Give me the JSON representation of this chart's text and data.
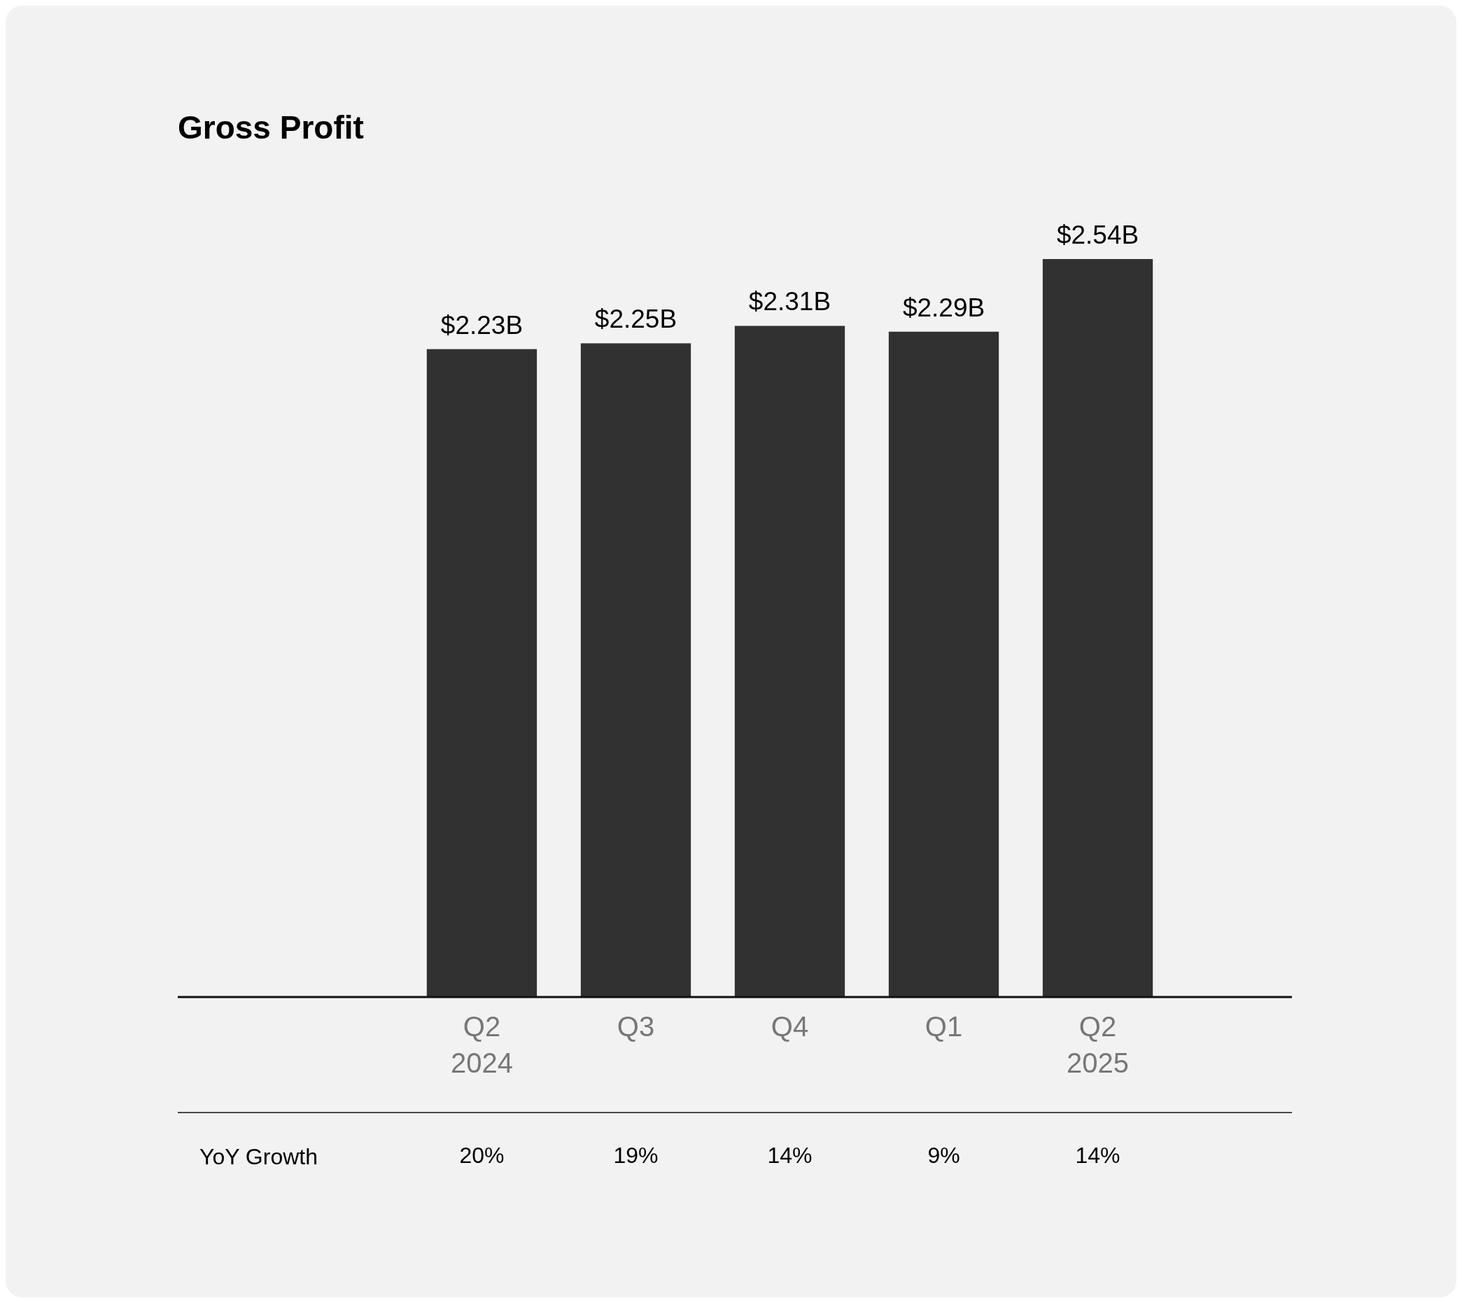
{
  "chart_data": {
    "type": "bar",
    "title": "Gross Profit",
    "categories": [
      "Q2\n2024",
      "Q3",
      "Q4",
      "Q1",
      "Q2\n2025"
    ],
    "values": [
      2.23,
      2.25,
      2.31,
      2.29,
      2.54
    ],
    "value_labels": [
      "$2.23B",
      "$2.25B",
      "$2.31B",
      "$2.29B",
      "$2.54B"
    ],
    "color": "#313131",
    "annotations": [
      "YoY Growth",
      "20%",
      "19%",
      "14%",
      "9%",
      "14%"
    ]
  }
}
